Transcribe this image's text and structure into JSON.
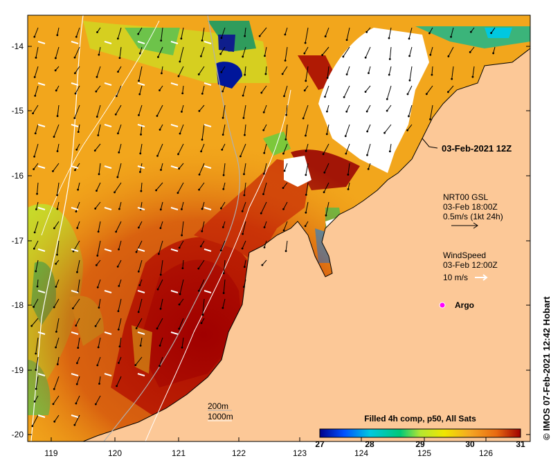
{
  "map": {
    "lon_ticks": [
      "119",
      "120",
      "121",
      "122",
      "123",
      "124",
      "125",
      "126"
    ],
    "lat_ticks": [
      "-14",
      "-15",
      "-16",
      "-17",
      "-18",
      "-19",
      "-20"
    ],
    "region": "North-west Australia (Kimberley coast)",
    "land_color": "#fcc897",
    "no_data_color": "#ffffff"
  },
  "annotations": {
    "analysis_time": "03-Feb-2021 12Z",
    "current_title": "NRT00 GSL",
    "current_time": "03-Feb 18:00Z",
    "current_scale": "0.5m/s (1kt 24h)",
    "wind_title": "WindSpeed",
    "wind_time": "03-Feb 12:00Z",
    "wind_scale": "10 m/s",
    "argo_label": "Argo",
    "depth_200": "200m",
    "depth_1000": "1000m"
  },
  "colorbar": {
    "title": "Filled 4h comp, p50, All Sats",
    "ticks": [
      "27",
      "28",
      "29",
      "30",
      "31"
    ],
    "min": 27,
    "max": 31,
    "colors": [
      "#00008b",
      "#0050ff",
      "#00c8e0",
      "#00c878",
      "#b4e632",
      "#f0e600",
      "#f5a623",
      "#e86a10",
      "#a00000"
    ]
  },
  "credit": "IMOS 07-Feb-2021 12:42 Hobart"
}
